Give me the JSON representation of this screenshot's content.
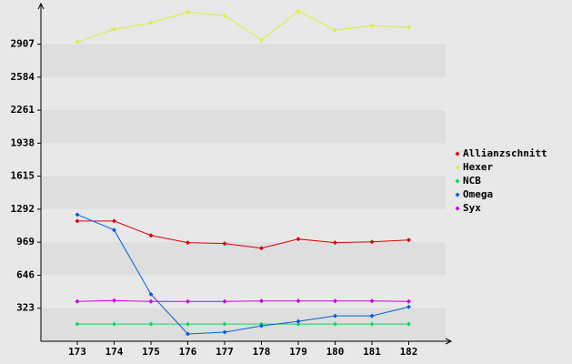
{
  "chart_data": {
    "type": "line",
    "categories": [
      "173",
      "174",
      "175",
      "176",
      "177",
      "178",
      "179",
      "180",
      "181",
      "182"
    ],
    "series": [
      {
        "name": "Allianzschnitt",
        "color": "#dd0000",
        "values": [
          1177,
          1177,
          1035,
          965,
          956,
          911,
          1000,
          965,
          973,
          991
        ]
      },
      {
        "name": "Hexer",
        "color": "#ddf030",
        "values": [
          2929,
          3053,
          3115,
          3221,
          3186,
          2947,
          3230,
          3044,
          3089,
          3071
        ]
      },
      {
        "name": "NCB",
        "color": "#00e060",
        "values": [
          168,
          168,
          168,
          168,
          168,
          168,
          168,
          168,
          168,
          168
        ]
      },
      {
        "name": "Omega",
        "color": "#0060dd",
        "values": [
          1239,
          1089,
          460,
          71,
          89,
          150,
          195,
          248,
          248,
          336
        ]
      },
      {
        "name": "Syx",
        "color": "#cc00dd",
        "values": [
          389,
          398,
          390,
          390,
          390,
          394,
          394,
          394,
          394,
          390
        ]
      }
    ],
    "ylim": [
      0,
      3250
    ],
    "yticks": [
      323,
      646,
      969,
      1292,
      1615,
      1938,
      2261,
      2584,
      2907
    ],
    "legend": "right"
  }
}
